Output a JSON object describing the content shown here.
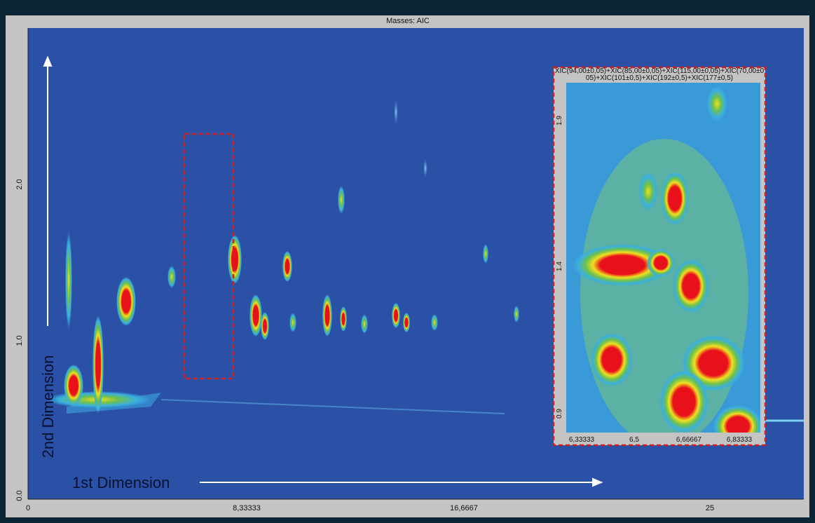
{
  "main": {
    "title": "Masses: AIC",
    "x_ticks": [
      "0",
      "8,33333",
      "16,6667",
      "25"
    ],
    "y_ticks": [
      "0.0",
      "1.0",
      "2.0"
    ],
    "x_label": "1st Dimension",
    "y_label": "2nd Dimension"
  },
  "inset": {
    "title_lines": [
      "XIC(94,00±0,05)+XIC(85,00±0,05)+XIC(115,00±0,05)+XIC(70,00±0",
      "05)+XIC(101±0,5)+XIC(192±0,5)+XIC(177±0,5)"
    ],
    "x_ticks": [
      "6,33333",
      "6,5",
      "6,66667",
      "6,83333"
    ],
    "y_ticks": [
      "0.9",
      "1.4",
      "1.9"
    ]
  }
}
